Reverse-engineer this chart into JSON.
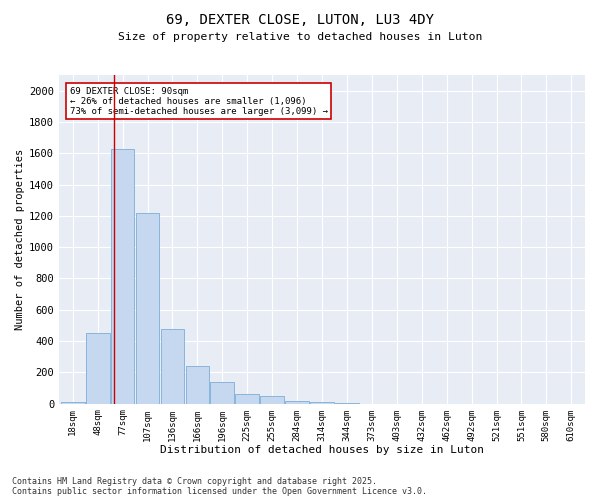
{
  "title1": "69, DEXTER CLOSE, LUTON, LU3 4DY",
  "title2": "Size of property relative to detached houses in Luton",
  "xlabel": "Distribution of detached houses by size in Luton",
  "ylabel": "Number of detached properties",
  "categories": [
    "18sqm",
    "48sqm",
    "77sqm",
    "107sqm",
    "136sqm",
    "166sqm",
    "196sqm",
    "225sqm",
    "255sqm",
    "284sqm",
    "314sqm",
    "344sqm",
    "373sqm",
    "403sqm",
    "432sqm",
    "462sqm",
    "492sqm",
    "521sqm",
    "551sqm",
    "580sqm",
    "610sqm"
  ],
  "values": [
    10,
    450,
    1630,
    1220,
    480,
    240,
    140,
    60,
    50,
    20,
    10,
    5,
    0,
    0,
    0,
    0,
    0,
    0,
    0,
    0,
    0
  ],
  "bar_color": "#c5d8f0",
  "bar_edge_color": "#7aaed6",
  "vline_color": "#cc0000",
  "vline_x": 1.67,
  "annotation_text": "69 DEXTER CLOSE: 90sqm\n← 26% of detached houses are smaller (1,096)\n73% of semi-detached houses are larger (3,099) →",
  "annotation_box_color": "#cc0000",
  "ylim": [
    0,
    2100
  ],
  "yticks": [
    0,
    200,
    400,
    600,
    800,
    1000,
    1200,
    1400,
    1600,
    1800,
    2000
  ],
  "background_color": "#e8edf5",
  "footer1": "Contains HM Land Registry data © Crown copyright and database right 2025.",
  "footer2": "Contains public sector information licensed under the Open Government Licence v3.0."
}
